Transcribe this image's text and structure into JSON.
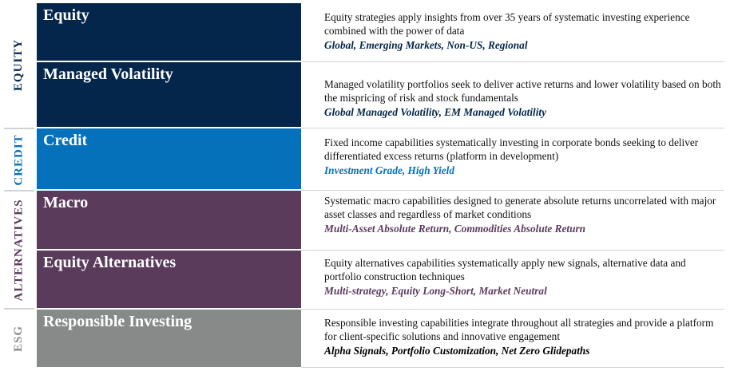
{
  "colors": {
    "equity": "#03264a",
    "credit": "#0571ba",
    "alternatives": "#5a3b5c",
    "esg": "#878a88",
    "equity_tag": "#03264a",
    "credit_tag": "#0571ba",
    "alt_tag": "#5a3b5c",
    "esg_tag": "#000000"
  },
  "groups": [
    {
      "label": "EQUITY"
    },
    {
      "label": "CREDIT"
    },
    {
      "label": "ALTERNATIVES"
    },
    {
      "label": "ESG"
    }
  ],
  "rows": [
    {
      "title": "Equity",
      "description": "Equity strategies apply insights from over 35 years of systematic investing experience combined with the power of data",
      "tags": "Global, Emerging Markets, Non-US, Regional"
    },
    {
      "title": "Managed Volatility",
      "description": "Managed volatility portfolios seek to deliver active returns and lower volatility based on both the mispricing of risk and stock fundamentals",
      "tags": "Global Managed Volatility, EM Managed Volatility"
    },
    {
      "title": "Credit",
      "description": "Fixed income capabilities systematically investing in corporate bonds seeking to deliver differentiated excess returns (platform in development)",
      "tags": "Investment Grade, High Yield"
    },
    {
      "title": "Macro",
      "description": "Systematic macro capabilities designed to generate absolute returns uncorrelated with major asset classes and regardless of market conditions",
      "tags": "Multi-Asset Absolute Return, Commodities Absolute Return"
    },
    {
      "title": "Equity Alternatives",
      "description": "Equity alternatives capabilities systematically apply new signals, alternative data and portfolio construction techniques",
      "tags": "Multi-strategy, Equity Long-Short, Market Neutral"
    },
    {
      "title": "Responsible Investing",
      "description": "Responsible investing capabilities integrate throughout all strategies and provide a platform for client-specific solutions and innovative engagement",
      "tags": "Alpha Signals, Portfolio Customization, Net Zero Glidepaths"
    }
  ]
}
